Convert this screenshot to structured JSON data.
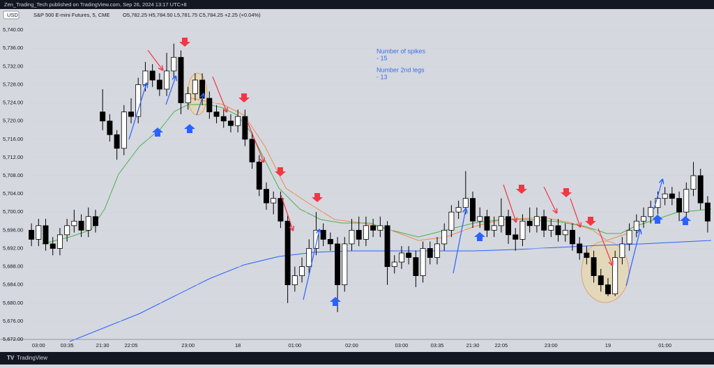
{
  "header": {
    "publisher": "Zen_Trading_Tech published on TradingView.com, Sep 26, 2024 13:17 UTC+8",
    "currency": "USD",
    "symbol": "S&P 500 E-mini Futures, 5, CME",
    "ohlc": "O5,782.25 H5,784.50 L5,781.75 C5,784.25 +2.25 (+0.04%)"
  },
  "annotations": [
    "Number of spikes",
    "- 15",
    "Number 2nd legs",
    "- 13"
  ],
  "footer": "TradingView",
  "chart_data": {
    "type": "candlestick",
    "categories": [
      null,
      "03:00",
      null,
      null,
      null,
      "03:35",
      null,
      null,
      null,
      null,
      "21:30",
      null,
      null,
      null,
      "22:05",
      null,
      null,
      null,
      null,
      null,
      null,
      null,
      "23:00",
      null,
      null,
      null,
      null,
      null,
      null,
      "18",
      null,
      null,
      null,
      null,
      null,
      null,
      null,
      "01:00",
      null,
      null,
      null,
      null,
      null,
      null,
      null,
      "02:00",
      null,
      null,
      null,
      null,
      null,
      null,
      "03:00",
      null,
      null,
      null,
      null,
      "03:35",
      null,
      null,
      null,
      null,
      "21:30",
      null,
      null,
      null,
      "22:05",
      null,
      null,
      null,
      null,
      null,
      null,
      "23:00",
      null,
      null,
      null,
      null,
      null,
      null,
      null,
      "19",
      null,
      null,
      null,
      null,
      null,
      null,
      null,
      "01:00",
      null,
      null,
      null,
      null,
      null,
      null
    ],
    "open": [
      5696,
      5694,
      5697,
      5693,
      5692,
      5695,
      5697,
      5698,
      5696,
      5699,
      5722,
      5720,
      5717,
      5714,
      5722,
      5721,
      5728,
      5731,
      5729,
      5727,
      5731,
      5734,
      5724,
      5726,
      5729,
      5725,
      5722,
      5721,
      5720,
      5719,
      5721,
      5716,
      5711,
      5705,
      5702,
      5703,
      5698,
      5684,
      5686,
      5688,
      5692,
      5696,
      5694,
      5693,
      5684,
      5693,
      5696,
      5694,
      5697,
      5696,
      5697,
      5688,
      5689,
      5691,
      5690,
      5686,
      5692,
      5690,
      5693,
      5696,
      5700,
      5701,
      5703,
      5698,
      5699,
      5696,
      5697,
      5699,
      5695,
      5694,
      5698,
      5697,
      5699,
      5696,
      5697,
      5695,
      5696,
      5693,
      5691,
      5690,
      5686,
      5684,
      5682,
      5690,
      5693,
      5696,
      5698,
      5699,
      5701,
      5703,
      5704,
      5703,
      5700,
      5705,
      5708,
      5702
    ],
    "high": [
      5697.5,
      5698.5,
      5698.5,
      5694.5,
      5696.5,
      5698.5,
      5700.5,
      5699.5,
      5701,
      5700.5,
      5727,
      5721.5,
      5718,
      5723.5,
      5725,
      5729.5,
      5733,
      5732.5,
      5730.5,
      5735,
      5737,
      5735.5,
      5727.5,
      5730.5,
      5730.5,
      5726.5,
      5723.5,
      5722.5,
      5721.5,
      5722.5,
      5722.5,
      5717.5,
      5712.5,
      5706.5,
      5704.5,
      5704.5,
      5699.5,
      5688,
      5690,
      5694,
      5700,
      5697.5,
      5695.5,
      5694.5,
      5694.5,
      5698.5,
      5699,
      5699,
      5698.5,
      5699,
      5698,
      5690.5,
      5692.5,
      5692.5,
      5691.5,
      5693.5,
      5693.5,
      5694.5,
      5697.5,
      5701.5,
      5702.5,
      5709,
      5704.5,
      5701,
      5700.5,
      5699,
      5703,
      5700.5,
      5696.5,
      5699.5,
      5701,
      5701,
      5700.5,
      5698.5,
      5698.5,
      5697.5,
      5697.5,
      5694.5,
      5692.5,
      5691.5,
      5687.5,
      5685.5,
      5691.5,
      5694.5,
      5697.5,
      5699.5,
      5701,
      5702.5,
      5704.5,
      5705.5,
      5705.5,
      5704.5,
      5706.5,
      5711,
      5709.5,
      5703.5
    ],
    "low": [
      5692.5,
      5692.5,
      5691.5,
      5690.5,
      5690.5,
      5693.5,
      5695.5,
      5694.5,
      5694.5,
      5695.5,
      5718,
      5715.5,
      5711.5,
      5712.5,
      5719.5,
      5719.5,
      5726.5,
      5727.5,
      5725.5,
      5725.5,
      5729.5,
      5721.5,
      5722.5,
      5724.5,
      5723.5,
      5720.5,
      5719.5,
      5718.5,
      5717.5,
      5717.5,
      5714.5,
      5709.5,
      5703.5,
      5700.5,
      5699.5,
      5696.5,
      5680,
      5682.5,
      5684.5,
      5686.5,
      5690.5,
      5692.5,
      5691.5,
      5678,
      5682.5,
      5691.5,
      5692.5,
      5692.5,
      5694.5,
      5694.5,
      5684,
      5686.5,
      5687.5,
      5688.5,
      5683.5,
      5684.5,
      5688.5,
      5688.5,
      5691.5,
      5694.5,
      5698.5,
      5699.5,
      5696.5,
      5696.5,
      5694.5,
      5694.5,
      5695.5,
      5693,
      5691.5,
      5692.5,
      5695.5,
      5695.5,
      5694.5,
      5694.5,
      5693.5,
      5693.5,
      5691.5,
      5689.5,
      5688.5,
      5684.5,
      5682.5,
      5681.5,
      5681.5,
      5688.5,
      5691.5,
      5694.5,
      5696.5,
      5697.5,
      5699.5,
      5701.5,
      5701.5,
      5698,
      5698.5,
      5703.5,
      5700.5,
      5695.5
    ],
    "close": [
      5694,
      5697,
      5693,
      5692,
      5695,
      5697,
      5698,
      5696,
      5699,
      5697,
      5720,
      5717,
      5714,
      5722,
      5721,
      5728,
      5731,
      5729,
      5727,
      5731,
      5734,
      5724,
      5726,
      5729,
      5725,
      5722,
      5721,
      5720,
      5719,
      5721,
      5716,
      5711,
      5705,
      5702,
      5703,
      5698,
      5684,
      5686,
      5688,
      5692,
      5696,
      5694,
      5693,
      5684,
      5693,
      5696,
      5694,
      5697,
      5696,
      5697,
      5688,
      5689,
      5691,
      5690,
      5686,
      5692,
      5690,
      5693,
      5696,
      5700,
      5701,
      5703,
      5698,
      5699,
      5696,
      5697,
      5699,
      5695,
      5694,
      5698,
      5697,
      5699,
      5696,
      5697,
      5695,
      5696,
      5693,
      5691,
      5690,
      5686,
      5684,
      5682,
      5690,
      5693,
      5696,
      5698,
      5699,
      5701,
      5703,
      5704,
      5703,
      5700,
      5705,
      5708,
      5702,
      5698
    ],
    "up_color": "#ffffff",
    "down_color": "#000000",
    "ylim": [
      5672,
      5741.7
    ],
    "yticks": [
      {
        "value": 5672,
        "label": "5,672.00"
      },
      {
        "value": 5676,
        "label": "5,676.00"
      },
      {
        "value": 5680,
        "label": "5,680.00"
      },
      {
        "value": 5684,
        "label": "5,684.00"
      },
      {
        "value": 5688,
        "label": "5,688.00"
      },
      {
        "value": 5692,
        "label": "5,692.00"
      },
      {
        "value": 5696,
        "label": "5,696.00"
      },
      {
        "value": 5700,
        "label": "5,700.00"
      },
      {
        "value": 5704,
        "label": "5,704.00"
      },
      {
        "value": 5708,
        "label": "5,708.00"
      },
      {
        "value": 5712,
        "label": "5,712.00"
      },
      {
        "value": 5716,
        "label": "5,716.00"
      },
      {
        "value": 5720,
        "label": "5,720.00"
      },
      {
        "value": 5724,
        "label": "5,724.00"
      },
      {
        "value": 5728,
        "label": "5,728.00"
      },
      {
        "value": 5732,
        "label": "5,732.00"
      },
      {
        "value": 5736,
        "label": "5,736.00"
      },
      {
        "value": 5740,
        "label": "5,740.00"
      }
    ]
  }
}
